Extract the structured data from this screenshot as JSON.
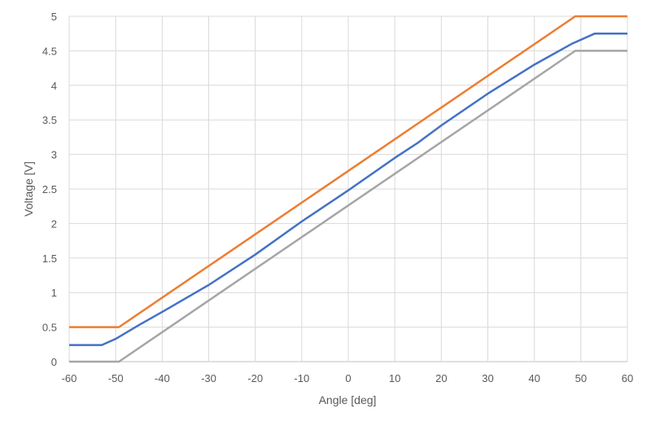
{
  "chart_data": {
    "type": "line",
    "title": "",
    "xlabel": "Angle [deg]",
    "ylabel": "Voltage [V]",
    "xlim": [
      -60,
      60
    ],
    "ylim": [
      0,
      5
    ],
    "xticks": [
      -60,
      -50,
      -40,
      -30,
      -20,
      -10,
      0,
      10,
      20,
      30,
      40,
      50,
      60
    ],
    "yticks": [
      0,
      0.5,
      1,
      1.5,
      2,
      2.5,
      3,
      3.5,
      4,
      4.5,
      5
    ],
    "grid": true,
    "legend": "none",
    "series": [
      {
        "color": "#ED7D31",
        "x": [
          -60,
          -49.3,
          48.8,
          60
        ],
        "y": [
          0.5,
          0.5,
          5.0,
          5.0
        ]
      },
      {
        "color": "#4472C4",
        "x": [
          -60,
          -53,
          -50,
          -45,
          -40,
          -30,
          -20,
          -10,
          0,
          10,
          15,
          20,
          30,
          40,
          48,
          53,
          60
        ],
        "y": [
          0.24,
          0.24,
          0.33,
          0.53,
          0.72,
          1.11,
          1.55,
          2.03,
          2.48,
          2.95,
          3.17,
          3.42,
          3.88,
          4.3,
          4.6,
          4.75,
          4.75
        ]
      },
      {
        "color": "#A5A5A5",
        "x": [
          -60,
          -49.3,
          48.8,
          60
        ],
        "y": [
          0.0,
          0.0,
          4.5,
          4.5
        ]
      }
    ]
  }
}
